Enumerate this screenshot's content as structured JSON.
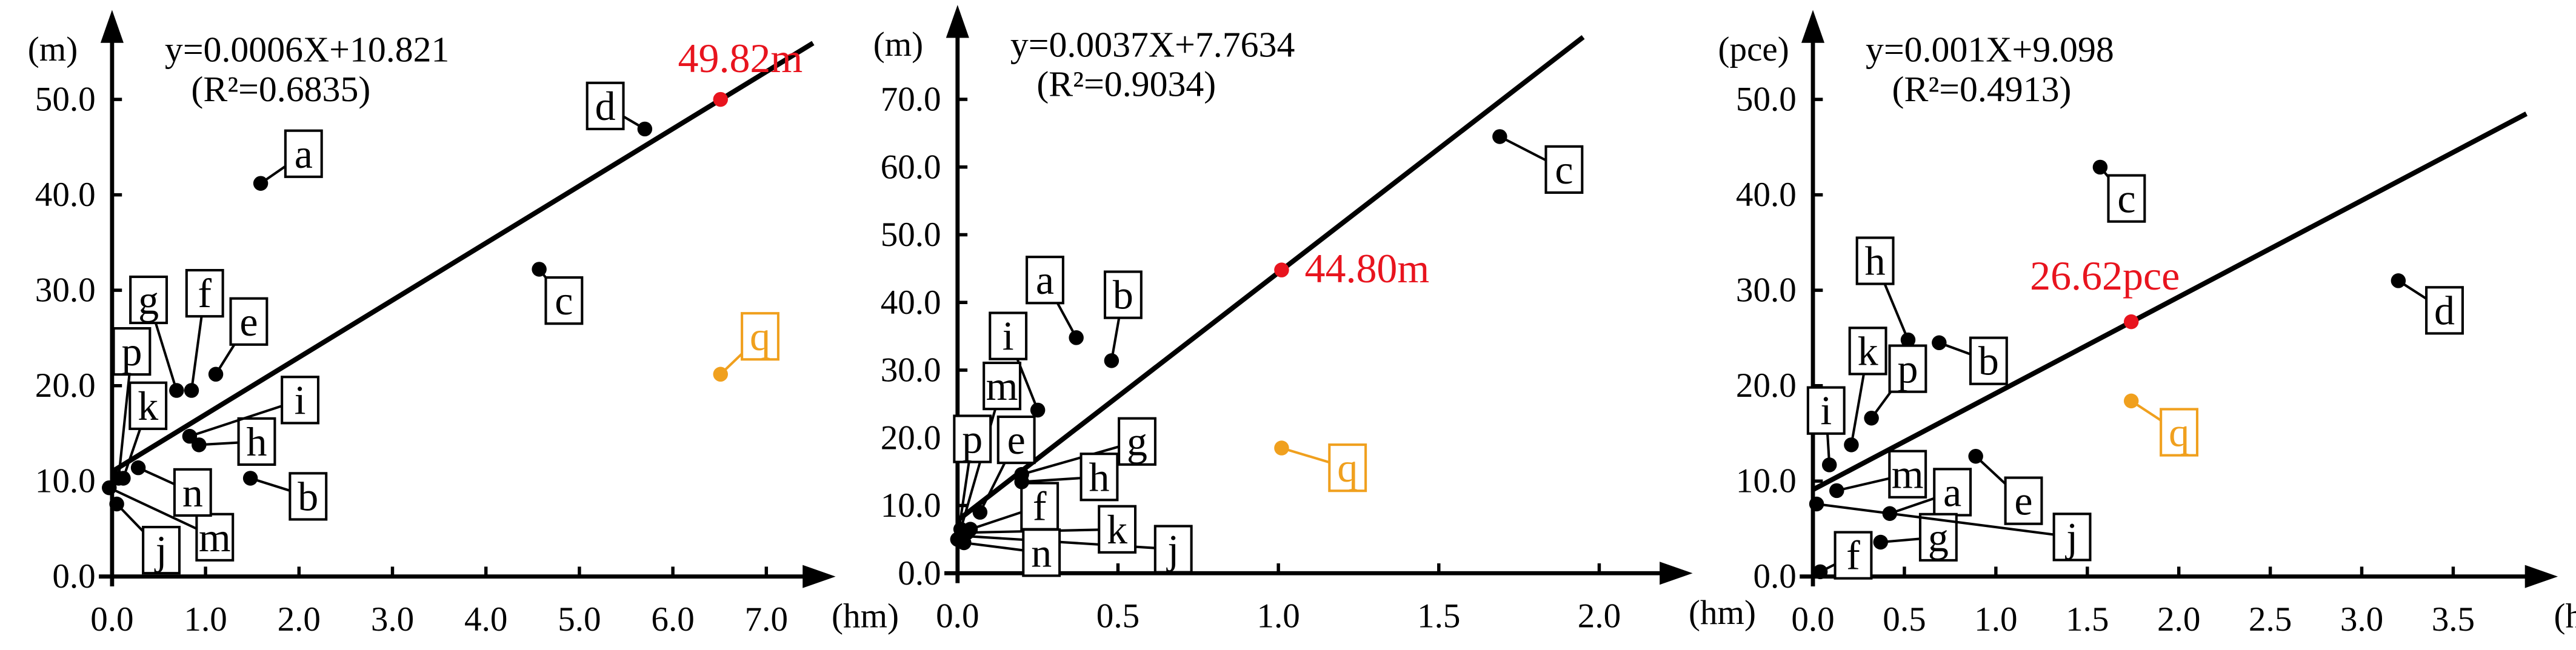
{
  "chart_data": [
    {
      "type": "scatter",
      "y_unit": "(m)",
      "x_unit": "(hm)",
      "equation": "y=0.0006X+10.821",
      "r_squared": "(R²=0.6835)",
      "labels": [
        "a",
        "b",
        "c",
        "d",
        "e",
        "f",
        "g",
        "h",
        "i",
        "j",
        "k",
        "m",
        "n",
        "p"
      ],
      "x": [
        1.59,
        1.48,
        4.57,
        5.7,
        1.11,
        0.85,
        0.69,
        0.93,
        0.83,
        0.05,
        0.12,
        -0.03,
        0.28,
        0.07
      ],
      "values": [
        41.2,
        10.3,
        32.2,
        46.9,
        21.2,
        19.5,
        19.5,
        13.8,
        14.7,
        7.6,
        10.3,
        9.3,
        11.4,
        10.3
      ],
      "color": "#000000",
      "highlight": {
        "label": "q",
        "x": 6.51,
        "value": 21.2,
        "color": "#f0a01e"
      },
      "annotation": {
        "text": "49.82m",
        "x": 6.51,
        "value": 50.0,
        "color": "#e8141e"
      },
      "fit_line": {
        "x": [
          0,
          7.5
        ],
        "values": [
          11.0,
          55.9
        ],
        "color": "#000000"
      },
      "xlim": [
        0,
        7.6
      ],
      "ylim": [
        0,
        58
      ],
      "xticks": [
        {
          "value": 0,
          "label": "0.0"
        },
        {
          "value": 1,
          "label": "1.0"
        },
        {
          "value": 2,
          "label": "2.0"
        },
        {
          "value": 3,
          "label": "3.0"
        },
        {
          "value": 4,
          "label": "4.0"
        },
        {
          "value": 5,
          "label": "5.0"
        },
        {
          "value": 6,
          "label": "6.0"
        },
        {
          "value": 7,
          "label": "7.0"
        }
      ],
      "yticks": [
        {
          "value": 0,
          "label": "0.0"
        },
        {
          "value": 10,
          "label": "10.0"
        },
        {
          "value": 20,
          "label": "20.0"
        },
        {
          "value": 30,
          "label": "30.0"
        },
        {
          "value": 40,
          "label": "40.0"
        },
        {
          "value": 50,
          "label": "50.0"
        }
      ]
    },
    {
      "type": "scatter",
      "y_unit": "(m)",
      "x_unit": "(hm)",
      "equation": "y=0.0037X+7.7634",
      "r_squared": "(R²=0.9034)",
      "labels": [
        "a",
        "b",
        "c",
        "e",
        "f",
        "g",
        "h",
        "i",
        "j",
        "k",
        "m",
        "n",
        "p"
      ],
      "x": [
        0.37,
        0.48,
        1.69,
        0.07,
        0.04,
        0.2,
        0.2,
        0.25,
        0.02,
        0.03,
        0.01,
        0.02,
        0.0
      ],
      "values": [
        34.8,
        31.4,
        64.5,
        9.0,
        6.5,
        14.6,
        13.5,
        24.1,
        5.5,
        6.0,
        6.5,
        4.5,
        5.0
      ],
      "color": "#000000",
      "highlight": {
        "label": "q",
        "x": 1.01,
        "value": 18.5,
        "color": "#f0a01e"
      },
      "annotation": {
        "text": "44.80m",
        "x": 1.01,
        "value": 44.8,
        "color": "#e8141e"
      },
      "fit_line": {
        "x": [
          0,
          1.95
        ],
        "values": [
          7.8,
          79.2
        ],
        "color": "#000000"
      },
      "xlim": [
        0,
        2.25
      ],
      "ylim": [
        0,
        82
      ],
      "xticks": [
        {
          "value": 0,
          "label": "0.0"
        },
        {
          "value": 0.5,
          "label": "0.5"
        },
        {
          "value": 1,
          "label": "1.0"
        },
        {
          "value": 1.5,
          "label": "1.5"
        },
        {
          "value": 2,
          "label": "2.0"
        }
      ],
      "yticks": [
        {
          "value": 0,
          "label": "0.0"
        },
        {
          "value": 10,
          "label": "10.0"
        },
        {
          "value": 20,
          "label": "20.0"
        },
        {
          "value": 30,
          "label": "30.0"
        },
        {
          "value": 40,
          "label": "40.0"
        },
        {
          "value": 50,
          "label": "50.0"
        },
        {
          "value": 60,
          "label": "60.0"
        },
        {
          "value": 70,
          "label": "70.0"
        }
      ]
    },
    {
      "type": "scatter",
      "y_unit": "(pce)",
      "x_unit": "(hm)",
      "equation": "y=0.001X+9.098",
      "r_squared": "(R²=0.4913)",
      "labels": [
        "a",
        "b",
        "c",
        "d",
        "e",
        "f",
        "g",
        "h",
        "i",
        "j",
        "k",
        "m",
        "p"
      ],
      "x": [
        0.42,
        0.69,
        1.57,
        3.2,
        0.89,
        0.04,
        0.37,
        0.52,
        0.09,
        0.02,
        0.21,
        0.13,
        0.32
      ],
      "values": [
        6.6,
        24.5,
        42.9,
        31.0,
        12.6,
        0.5,
        3.6,
        24.8,
        11.7,
        7.6,
        13.8,
        9.0,
        16.6
      ],
      "color": "#000000",
      "highlight": {
        "label": "q",
        "x": 1.74,
        "value": 18.4,
        "color": "#f0a01e"
      },
      "annotation": {
        "text": "26.62pce",
        "x": 1.74,
        "value": 26.7,
        "color": "#e8141e"
      },
      "fit_line": {
        "x": [
          0,
          3.9
        ],
        "values": [
          9.1,
          48.5
        ],
        "color": "#000000"
      },
      "xlim": [
        0,
        4.0
      ],
      "ylim": [
        0,
        58
      ],
      "xticks": [
        {
          "value": 0,
          "label": "0.0"
        },
        {
          "value": 0.5,
          "label": "0.5"
        },
        {
          "value": 1,
          "label": "1.0"
        },
        {
          "value": 1.5,
          "label": "1.5"
        },
        {
          "value": 2,
          "label": "2.0"
        },
        {
          "value": 2.5,
          "label": "2.5"
        },
        {
          "value": 3,
          "label": "3.0"
        },
        {
          "value": 3.5,
          "label": "3.5"
        }
      ],
      "yticks": [
        {
          "value": 0,
          "label": "0.0"
        },
        {
          "value": 10,
          "label": "10.0"
        },
        {
          "value": 20,
          "label": "20.0"
        },
        {
          "value": 30,
          "label": "30.0"
        },
        {
          "value": 40,
          "label": "40.0"
        },
        {
          "value": 50,
          "label": "50.0"
        }
      ]
    }
  ]
}
